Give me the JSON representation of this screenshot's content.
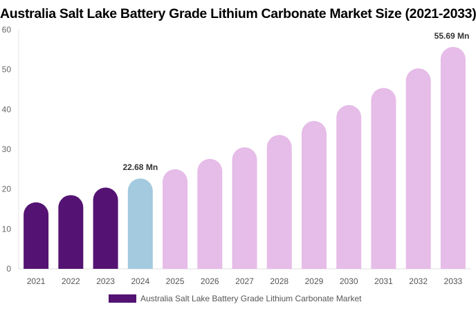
{
  "chart_data": {
    "type": "bar",
    "title": "Australia Salt Lake Battery Grade Lithium Carbonate Market Size (2021-2033)",
    "categories": [
      "2021",
      "2022",
      "2023",
      "2024",
      "2025",
      "2026",
      "2027",
      "2028",
      "2029",
      "2030",
      "2031",
      "2032",
      "2033"
    ],
    "series": [
      {
        "name": "Australia Salt Lake Battery Grade Lithium Carbonate Market",
        "values": [
          16.7,
          18.5,
          20.4,
          22.68,
          25.0,
          27.6,
          30.5,
          33.6,
          37.1,
          41.1,
          45.4,
          50.3,
          55.69
        ]
      }
    ],
    "bar_colors": {
      "historical": "#541372",
      "base_year": "#a3cadf",
      "forecast": "#e6bce8"
    },
    "period_by_category": [
      "historical",
      "historical",
      "historical",
      "base_year",
      "forecast",
      "forecast",
      "forecast",
      "forecast",
      "forecast",
      "forecast",
      "forecast",
      "forecast",
      "forecast"
    ],
    "data_labels": [
      {
        "category": "2024",
        "text": "22.68 Mn"
      },
      {
        "category": "2033",
        "text": "55.69 Mn"
      }
    ],
    "ylim": [
      0,
      60
    ],
    "yticks": [
      0,
      10,
      20,
      30,
      40,
      50,
      60
    ],
    "xlabel": "",
    "ylabel": "",
    "grid": false,
    "legend": "bottom",
    "legend_color": "#541372"
  }
}
